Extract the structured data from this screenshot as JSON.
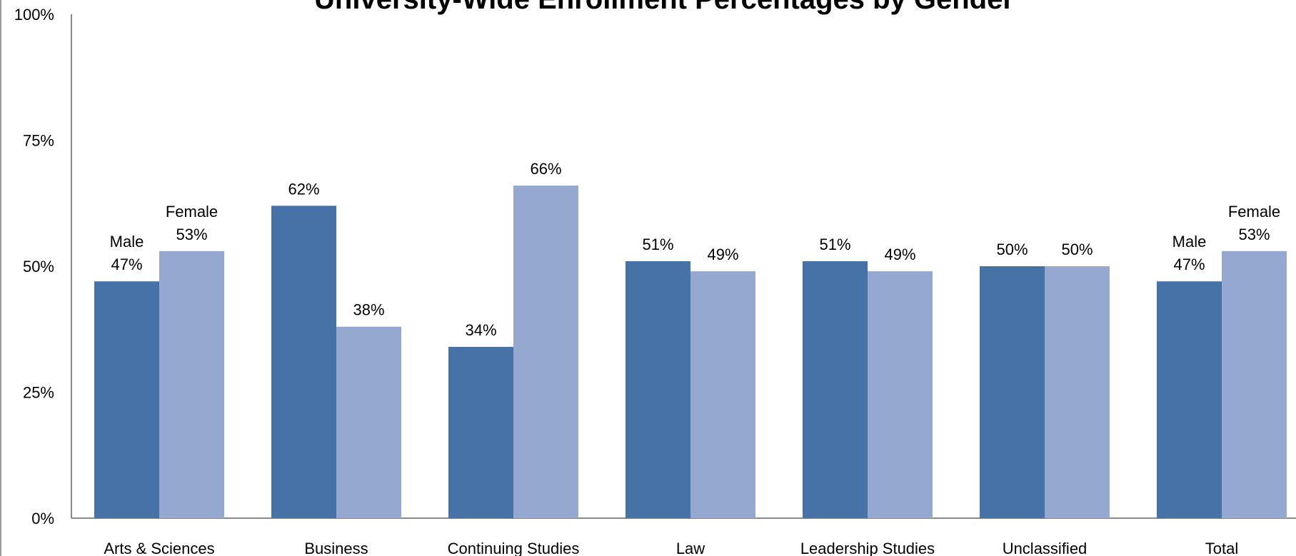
{
  "chart_data": {
    "type": "bar",
    "title": "University-Wide Enrollment Percentages by Gender",
    "categories": [
      "Arts & Sciences",
      "Business",
      "Continuing Studies",
      "Law",
      "Leadership Studies",
      "Unclassified",
      "Total"
    ],
    "series": [
      {
        "name": "Male",
        "color": "#4672a8",
        "values": [
          47,
          62,
          34,
          51,
          51,
          50,
          47
        ]
      },
      {
        "name": "Female",
        "color": "#95a9d0",
        "values": [
          53,
          38,
          66,
          49,
          49,
          50,
          53
        ]
      }
    ],
    "data_labels": [
      [
        "Male",
        "47%",
        "62%",
        "34%",
        "51%",
        "51%",
        "50%",
        "Male",
        "47%"
      ],
      [
        "Female",
        "53%",
        "38%",
        "66%",
        "49%",
        "49%",
        "50%",
        "Female",
        "53%"
      ]
    ],
    "y_ticks": [
      "0%",
      "25%",
      "50%",
      "75%",
      "100%"
    ],
    "ylim": [
      0,
      100
    ],
    "xlabel": "",
    "ylabel": "",
    "grid": false,
    "legend": "none (series names shown in data labels)"
  }
}
